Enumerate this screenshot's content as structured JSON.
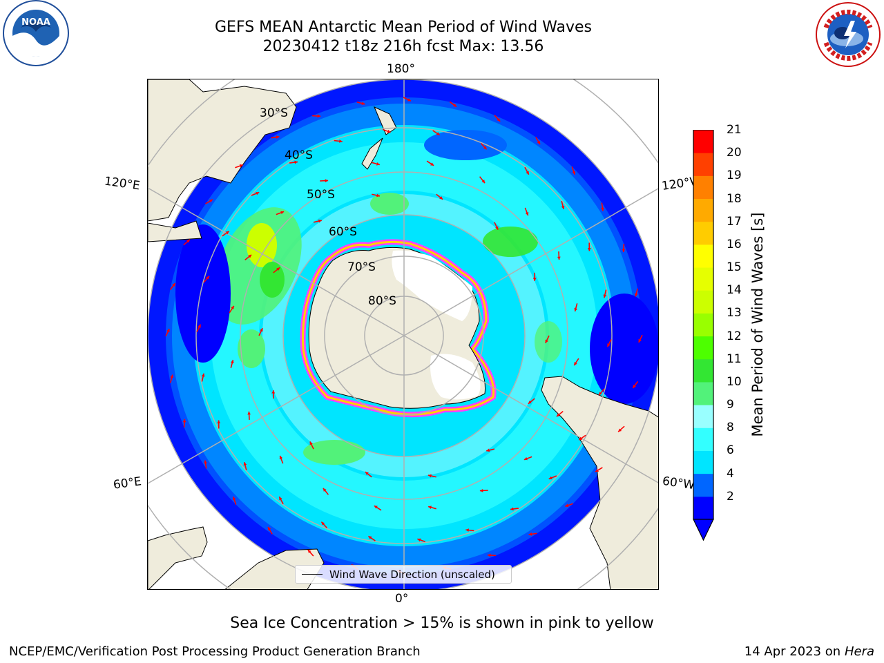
{
  "title": {
    "line1": "GEFS MEAN Antarctic Mean Period of Wind Waves",
    "line2": "20230412 t18z 216h fcst   Max: 13.56"
  },
  "logos": {
    "left_icon": "noaa-logo",
    "left_text": "NOAA",
    "left_ring_text": "NATIONAL OCEANIC AND ATMOSPHERIC ADMINISTRATION · U.S. DEPARTMENT OF COMMERCE",
    "right_icon": "nws-logo",
    "right_ring_text": "NATIONAL WEATHER SERVICE"
  },
  "map": {
    "projection": "south-polar-stereographic",
    "longitude_labels": {
      "top": "180°",
      "bottom": "0°",
      "upper_left": "120°E",
      "upper_right": "120°W",
      "lower_left": "60°E",
      "lower_right": "60°W"
    },
    "latitude_labels": [
      "30°S",
      "40°S",
      "50°S",
      "60°S",
      "70°S",
      "80°S"
    ],
    "legend_label": "Wind Wave Direction (unscaled)",
    "arrow_color": "#ff0000",
    "land_color": "#efecdc",
    "grid_color": "#b0b0b0"
  },
  "colorbar": {
    "label": "Mean Period of Wind Waves [s]",
    "ticks": [
      "21",
      "20",
      "19",
      "18",
      "17",
      "16",
      "15",
      "14",
      "13",
      "12",
      "11",
      "10",
      "9",
      "8",
      "6",
      "4",
      "2"
    ],
    "levels": [
      2,
      4,
      6,
      8,
      9,
      10,
      11,
      12,
      13,
      14,
      15,
      16,
      17,
      18,
      19,
      20,
      21
    ],
    "colors": [
      "#0000ff",
      "#0066ff",
      "#00e5ff",
      "#33ffff",
      "#99ffff",
      "#52f27a",
      "#33e633",
      "#4dff00",
      "#99ff00",
      "#ccff00",
      "#e6ff00",
      "#ffff00",
      "#ffcc00",
      "#ffaa00",
      "#ff8000",
      "#ff4000",
      "#ff0000"
    ],
    "extend": "min",
    "under_color": "#0000ff"
  },
  "caption": "Sea Ice Concentration > 15% is shown in pink to yellow",
  "footer": {
    "left": "NCEP/EMC/Verification Post Processing Product Generation Branch",
    "right_prefix": "14 Apr 2023 on ",
    "right_machine": "Hera"
  }
}
